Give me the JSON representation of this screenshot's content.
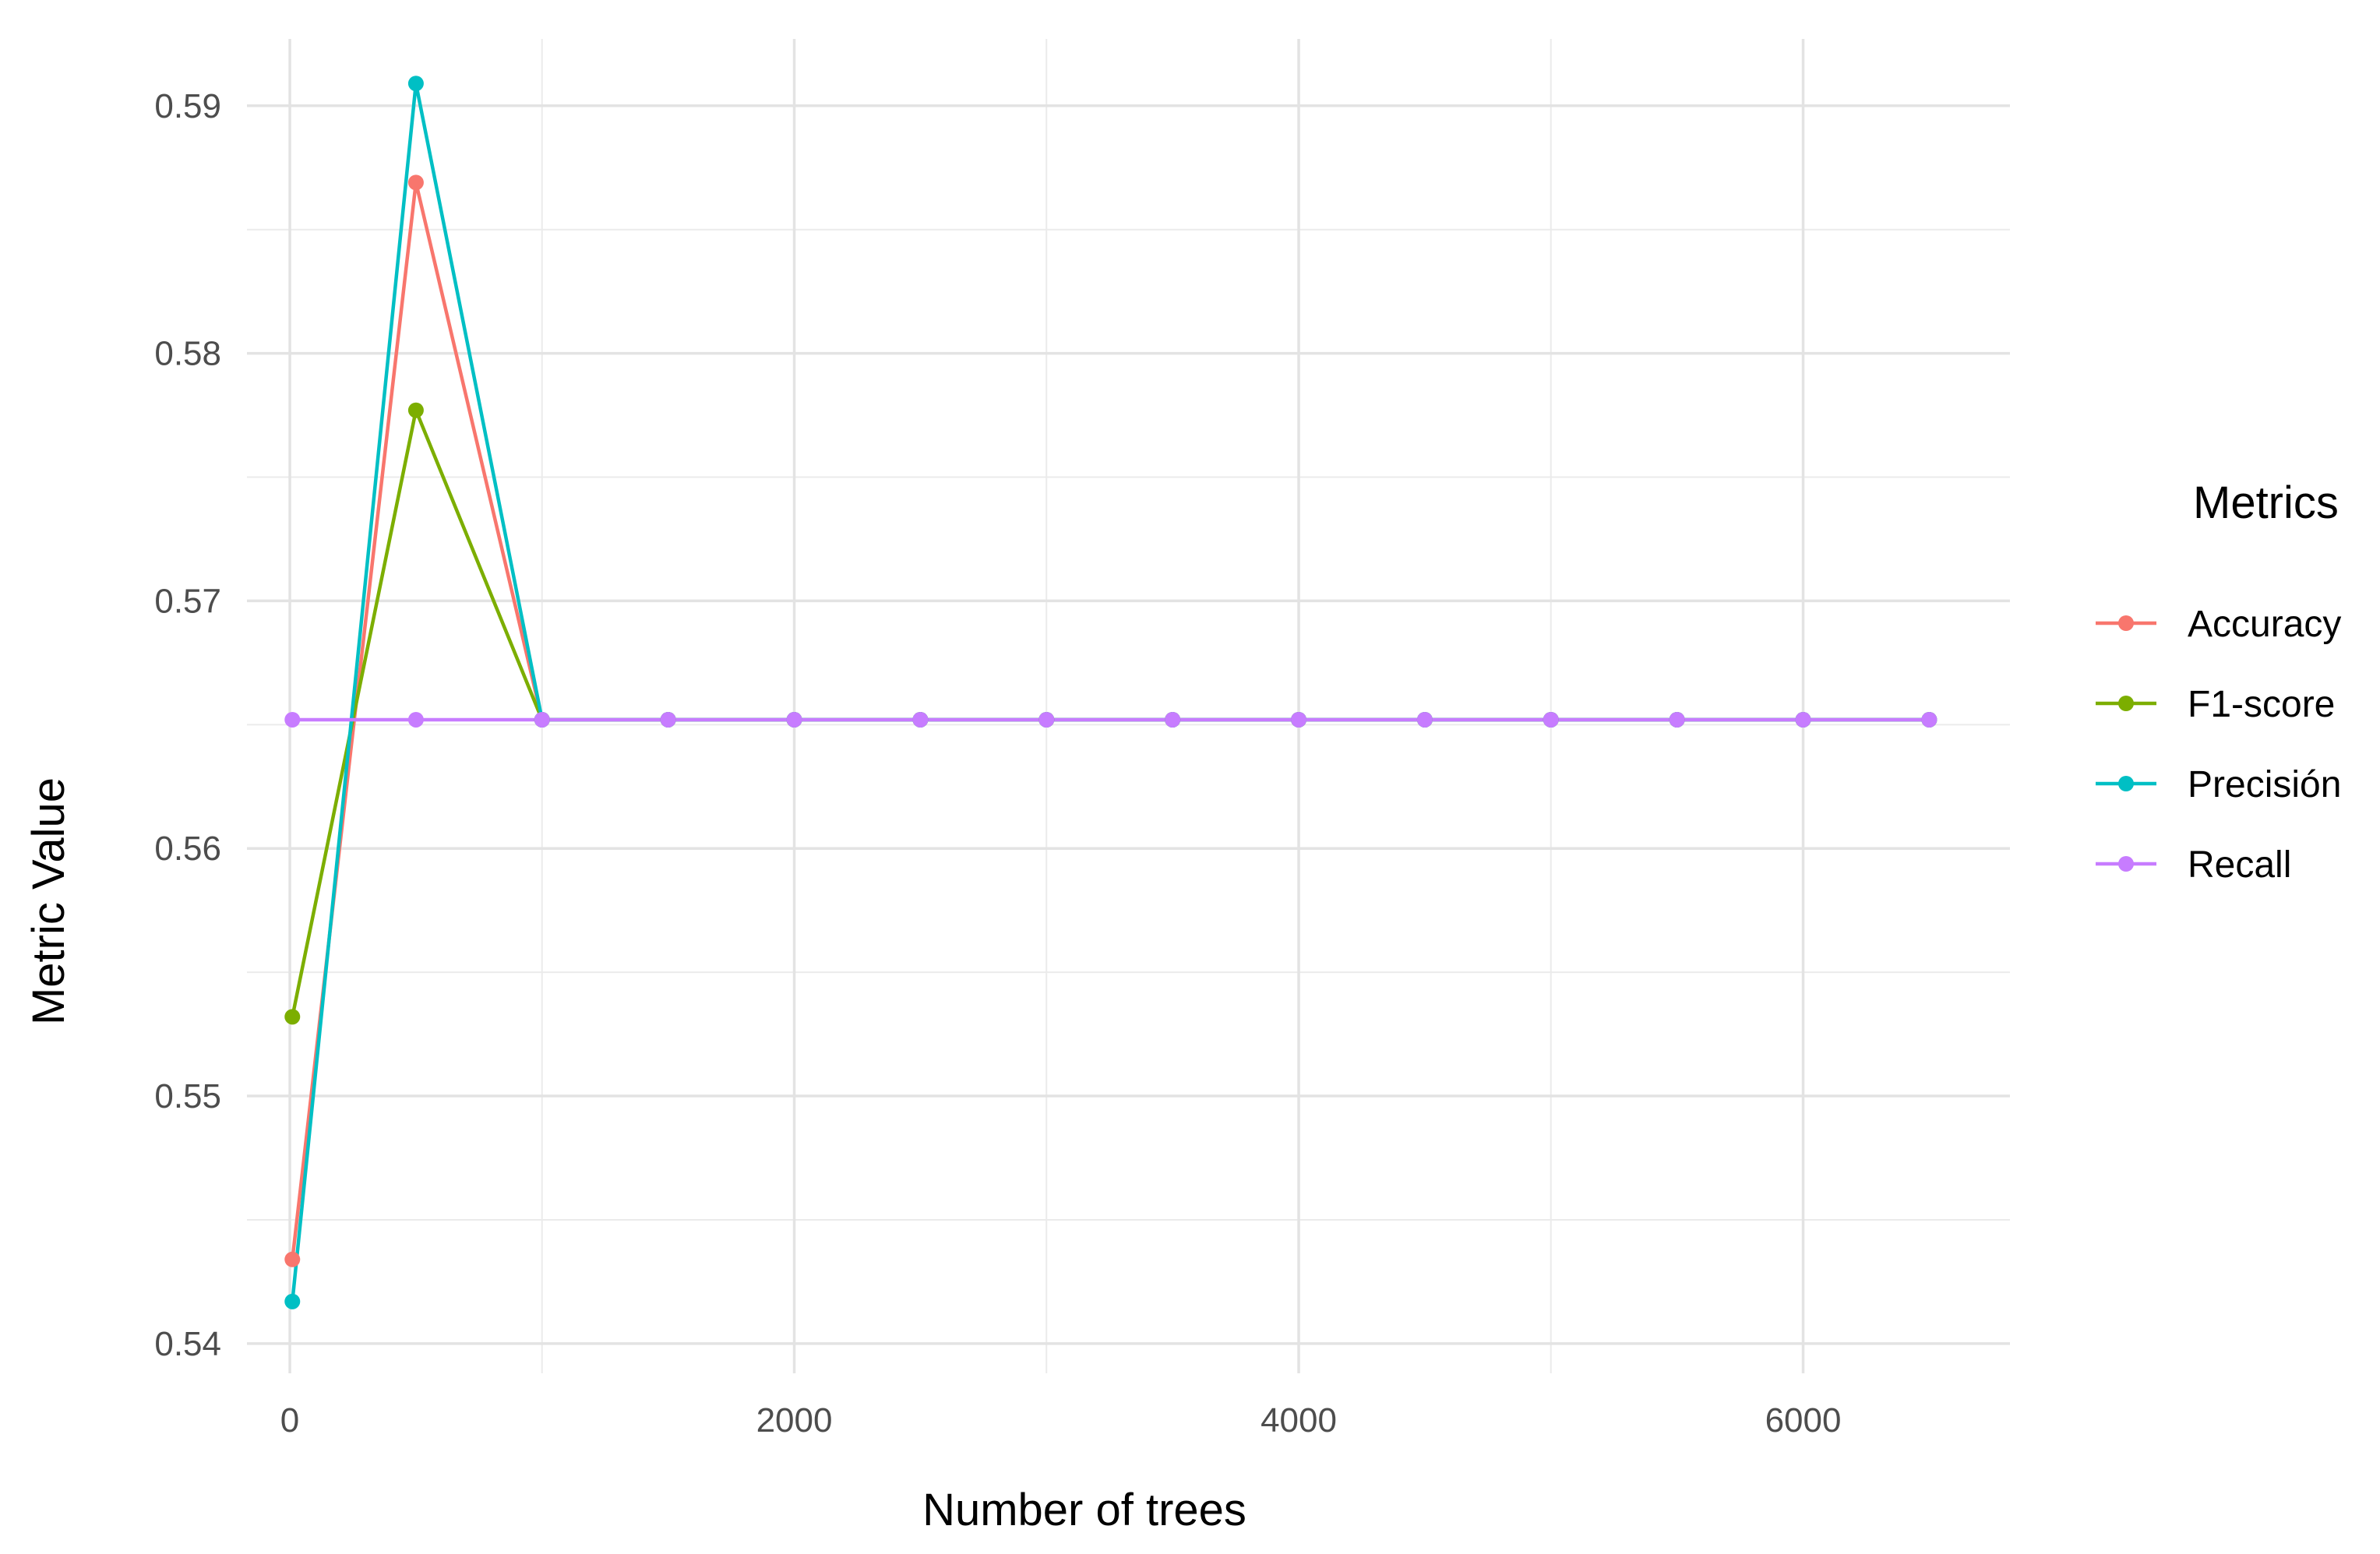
{
  "chart_data": {
    "type": "line",
    "title": "",
    "xlabel": "Number of trees",
    "ylabel": "Metric Value",
    "xlim": [
      -170,
      6820
    ],
    "ylim": [
      0.5388,
      0.5927
    ],
    "x_ticks": [
      0,
      2000,
      4000,
      6000
    ],
    "x_tick_labels": [
      "0",
      "2000",
      "4000",
      "6000"
    ],
    "x_minor_ticks": [
      1000,
      3000,
      5000
    ],
    "y_ticks": [
      0.54,
      0.55,
      0.56,
      0.57,
      0.58,
      0.59
    ],
    "y_tick_labels": [
      "0.54",
      "0.55",
      "0.56",
      "0.57",
      "0.58",
      "0.59"
    ],
    "y_minor_ticks": [
      0.545,
      0.555,
      0.565,
      0.575,
      0.585
    ],
    "grid": true,
    "legend": {
      "title": "Metrics",
      "placement": "right"
    },
    "x": [
      10,
      500,
      1000,
      1500,
      2000,
      2500,
      3000,
      3500,
      4000,
      4500,
      5000,
      5500,
      6000,
      6500
    ],
    "series": [
      {
        "name": "Accuracy",
        "color": "#F8766D",
        "values": [
          0.5434,
          0.5869,
          0.5652,
          0.5652,
          0.5652,
          0.5652,
          0.5652,
          0.5652,
          0.5652,
          0.5652,
          0.5652,
          0.5652,
          0.5652,
          0.5652
        ]
      },
      {
        "name": "F1-score",
        "color": "#7CAE00",
        "values": [
          0.5532,
          0.5777,
          0.5652,
          0.5652,
          0.5652,
          0.5652,
          0.5652,
          0.5652,
          0.5652,
          0.5652,
          0.5652,
          0.5652,
          0.5652,
          0.5652
        ]
      },
      {
        "name": "Precisión",
        "color": "#00BFC4",
        "values": [
          0.5417,
          0.5909,
          0.5652,
          0.5652,
          0.5652,
          0.5652,
          0.5652,
          0.5652,
          0.5652,
          0.5652,
          0.5652,
          0.5652,
          0.5652,
          0.5652
        ]
      },
      {
        "name": "Recall",
        "color": "#C77CFF",
        "values": [
          0.5652,
          0.5652,
          0.5652,
          0.5652,
          0.5652,
          0.5652,
          0.5652,
          0.5652,
          0.5652,
          0.5652,
          0.5652,
          0.5652,
          0.5652,
          0.5652
        ]
      }
    ]
  }
}
